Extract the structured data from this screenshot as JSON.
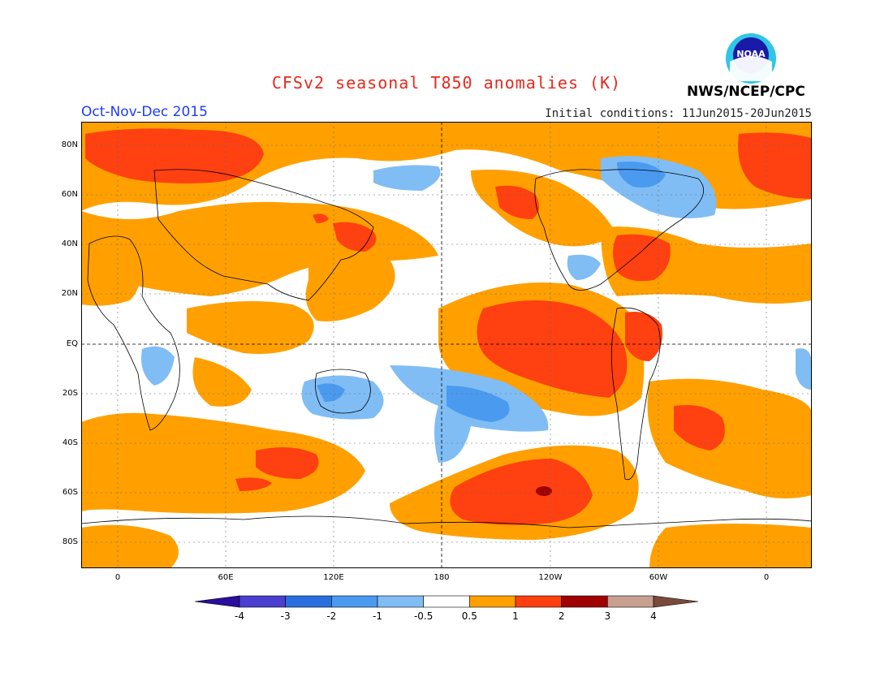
{
  "title": "CFSv2 seasonal T850 anomalies (K)",
  "period": "Oct-Nov-Dec 2015",
  "initial_conditions": "Initial conditions: 11Jun2015-20Jun2015",
  "agency": "NWS/NCEP/CPC",
  "logo_text": "NOAA",
  "lat_labels": [
    "80N",
    "60N",
    "40N",
    "20N",
    "EQ",
    "20S",
    "40S",
    "60S",
    "80S"
  ],
  "lon_labels": [
    "0",
    "60E",
    "120E",
    "180",
    "120W",
    "60W",
    "0"
  ],
  "colorbar": {
    "labels": [
      "-4",
      "-3",
      "-2",
      "-1",
      "-0.5",
      "0.5",
      "1",
      "2",
      "3",
      "4"
    ],
    "colors": [
      "#2a0ea0",
      "#4a3fd0",
      "#2a6fe0",
      "#4a9af0",
      "#80bdf5",
      "#ffffff",
      "#ffa000",
      "#ff4010",
      "#a00000",
      "#c8a090",
      "#7a4a3a"
    ]
  },
  "colors": {
    "title": "#e8281c",
    "period": "#1e3cff",
    "warm1": "#ffa000",
    "warm2": "#ff4010",
    "warm3": "#a00000",
    "cool1": "#80bdf5",
    "cool2": "#4a9af0"
  }
}
